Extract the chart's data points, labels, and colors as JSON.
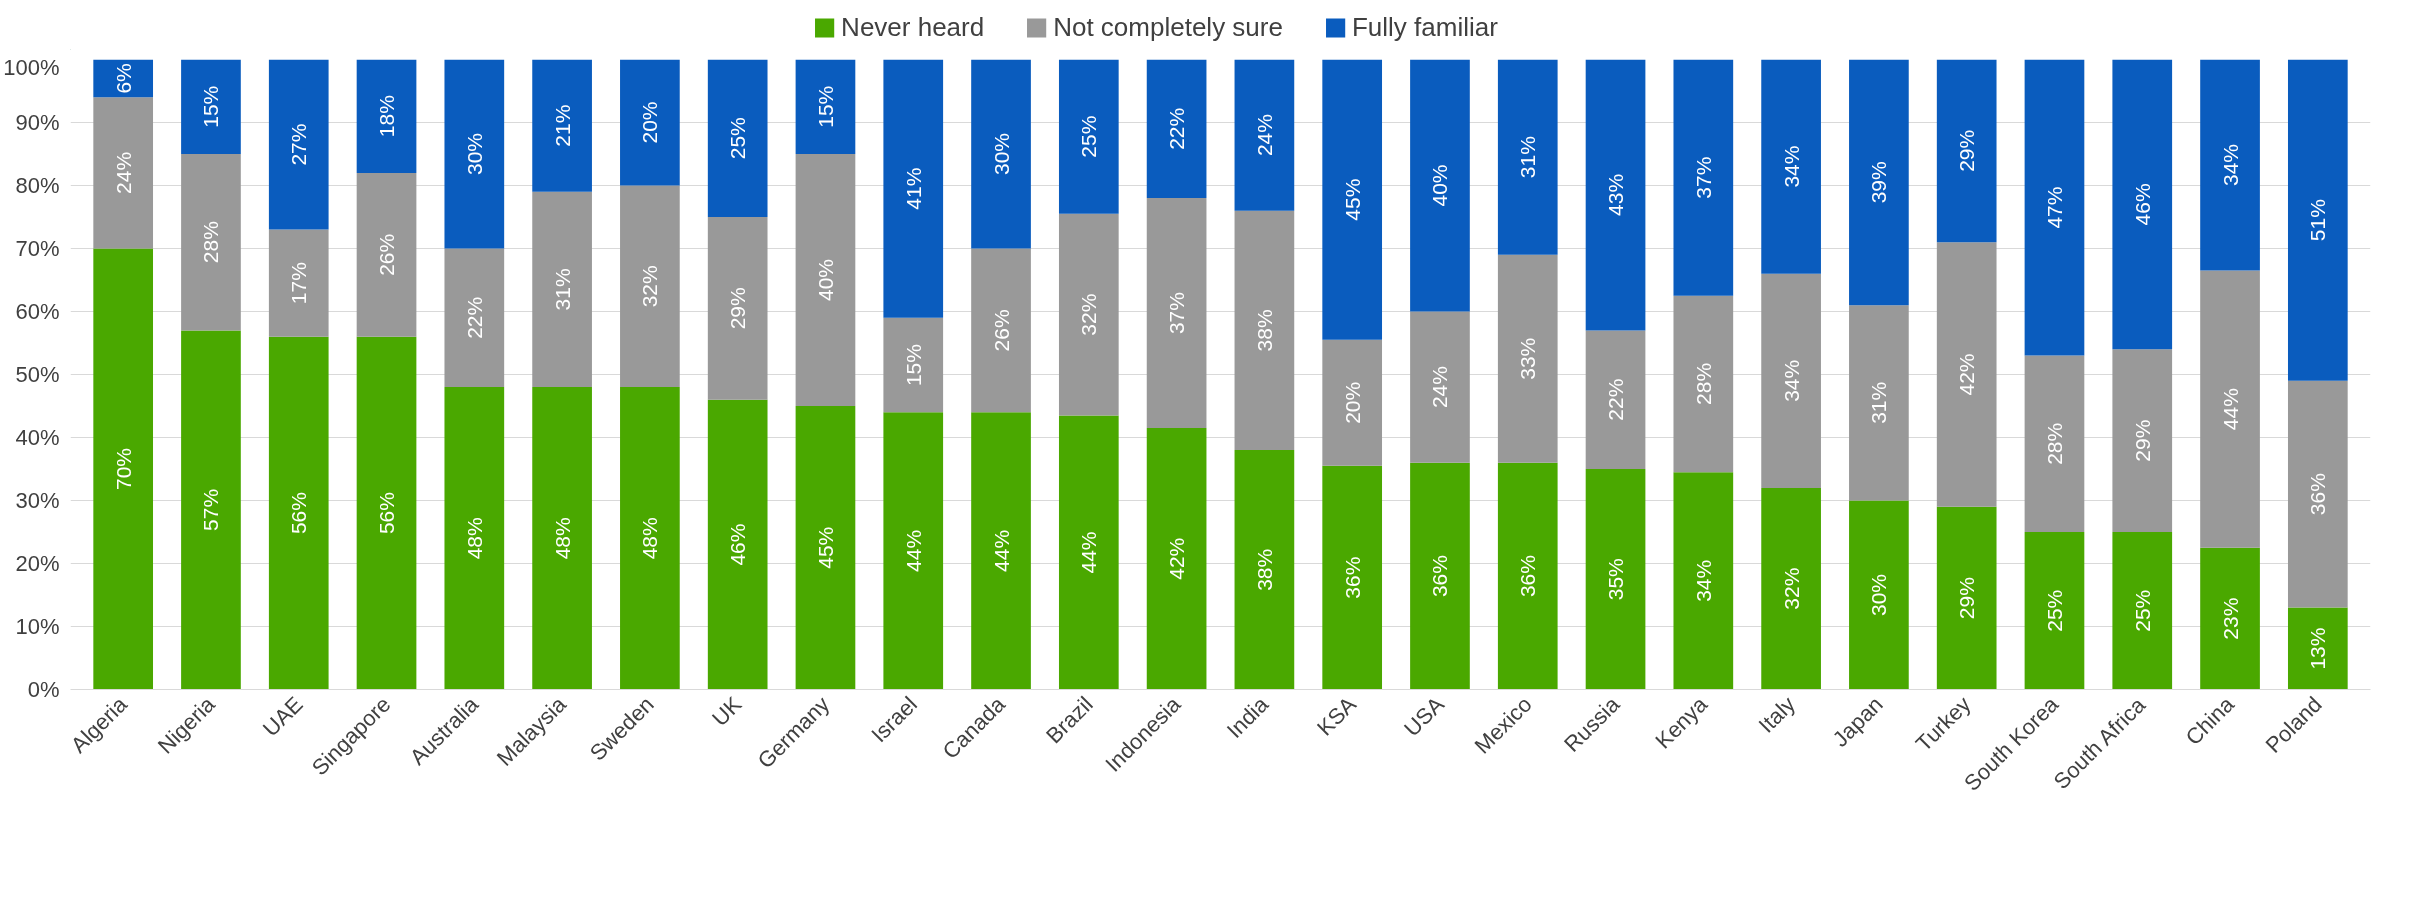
{
  "chart_data": {
    "type": "bar",
    "stacked": true,
    "legend": "top",
    "grid": "y",
    "categories": [
      "Algeria",
      "Nigeria",
      "UAE",
      "Singapore",
      "Australia",
      "Malaysia",
      "Sweden",
      "UK",
      "Germany",
      "Israel",
      "Canada",
      "Brazil",
      "Indonesia",
      "India",
      "KSA",
      "USA",
      "Mexico",
      "Russia",
      "Kenya",
      "Italy",
      "Japan",
      "Turkey",
      "South Korea",
      "South Africa",
      "China",
      "Poland"
    ],
    "ylim": [
      0,
      100
    ],
    "yticks": [
      {
        "value": 0,
        "label": "0%"
      },
      {
        "value": 10,
        "label": "10%"
      },
      {
        "value": 20,
        "label": "20%"
      },
      {
        "value": 30,
        "label": "30%"
      },
      {
        "value": 40,
        "label": "40%"
      },
      {
        "value": 50,
        "label": "50%"
      },
      {
        "value": 60,
        "label": "60%"
      },
      {
        "value": 70,
        "label": "70%"
      },
      {
        "value": 80,
        "label": "80%"
      },
      {
        "value": 90,
        "label": "90%"
      },
      {
        "value": 100,
        "label": "100%"
      }
    ],
    "series": [
      {
        "name": "Never heard",
        "color": "#4aa800",
        "values": [
          70,
          57,
          56,
          56,
          48,
          48,
          48,
          46,
          45,
          44,
          44,
          43.5,
          41.5,
          38,
          35.5,
          36,
          36,
          35,
          34.5,
          32,
          30,
          29,
          25,
          25,
          22.5,
          13
        ],
        "value_labels": [
          "70%",
          "57%",
          "56%",
          "56%",
          "48%",
          "48%",
          "48%",
          "46%",
          "45%",
          "44%",
          "44%",
          "44%",
          "42%",
          "38%",
          "36%",
          "36%",
          "36%",
          "35%",
          "34%",
          "32%",
          "30%",
          "29%",
          "25%",
          "25%",
          "23%",
          "13%"
        ]
      },
      {
        "name": "Not completely sure",
        "color": "#999999",
        "values": [
          24,
          28,
          17,
          26,
          22,
          31,
          32,
          29,
          40,
          15,
          26,
          32,
          36.5,
          38,
          20,
          24,
          33,
          22,
          28,
          34,
          31,
          42,
          28,
          29,
          44,
          36
        ],
        "value_labels": [
          "24%",
          "28%",
          "17%",
          "26%",
          "22%",
          "31%",
          "32%",
          "29%",
          "40%",
          "15%",
          "26%",
          "32%",
          "37%",
          "38%",
          "20%",
          "24%",
          "33%",
          "22%",
          "28%",
          "34%",
          "31%",
          "42%",
          "28%",
          "29%",
          "44%",
          "36%"
        ]
      },
      {
        "name": "Fully familiar",
        "color": "#0a5cbe",
        "values": [
          6,
          15,
          27,
          18,
          30,
          21,
          20,
          25,
          15,
          41,
          30,
          24.5,
          22,
          24,
          44.5,
          40,
          31,
          43,
          37.5,
          34,
          39,
          29,
          47,
          46,
          33.5,
          51
        ],
        "value_labels": [
          "6%",
          "15%",
          "27%",
          "18%",
          "30%",
          "21%",
          "20%",
          "25%",
          "15%",
          "41%",
          "30%",
          "25%",
          "22%",
          "24%",
          "45%",
          "40%",
          "31%",
          "43%",
          "37%",
          "34%",
          "39%",
          "29%",
          "47%",
          "46%",
          "34%",
          "51%"
        ]
      }
    ]
  }
}
